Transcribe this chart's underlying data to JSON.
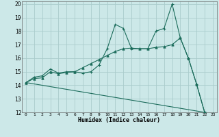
{
  "xlabel": "Humidex (Indice chaleur)",
  "bg_color": "#cce8e8",
  "grid_color": "#aacccc",
  "line_color": "#1a6b5a",
  "xlim": [
    -0.5,
    23.5
  ],
  "ylim": [
    12,
    20.2
  ],
  "yticks": [
    12,
    13,
    14,
    15,
    16,
    17,
    18,
    19,
    20
  ],
  "xticks": [
    0,
    1,
    2,
    3,
    4,
    5,
    6,
    7,
    8,
    9,
    10,
    11,
    12,
    13,
    14,
    15,
    16,
    17,
    18,
    19,
    20,
    21,
    22,
    23
  ],
  "line1_x": [
    0,
    1,
    2,
    3,
    4,
    5,
    6,
    7,
    8,
    9,
    10,
    11,
    12,
    13,
    14,
    15,
    16,
    17,
    18,
    19,
    20,
    21,
    22,
    23
  ],
  "line1_y": [
    14.2,
    14.6,
    14.7,
    15.2,
    14.9,
    15.0,
    15.0,
    14.9,
    15.0,
    15.5,
    16.7,
    18.5,
    18.2,
    16.7,
    16.7,
    16.7,
    18.0,
    18.2,
    20.0,
    17.5,
    16.0,
    14.1,
    12.0,
    11.9
  ],
  "line2_x": [
    0,
    1,
    2,
    3,
    4,
    5,
    6,
    7,
    8,
    9,
    10,
    11,
    12,
    13,
    14,
    15,
    16,
    17,
    18,
    19,
    20,
    21,
    22,
    23
  ],
  "line2_y": [
    14.2,
    14.5,
    14.55,
    15.0,
    14.85,
    14.95,
    15.0,
    15.3,
    15.6,
    15.9,
    16.2,
    16.5,
    16.7,
    16.75,
    16.7,
    16.7,
    16.8,
    16.85,
    17.0,
    17.5,
    16.0,
    14.1,
    12.0,
    11.9
  ],
  "line3_x": [
    0,
    23
  ],
  "line3_y": [
    14.2,
    11.9
  ]
}
